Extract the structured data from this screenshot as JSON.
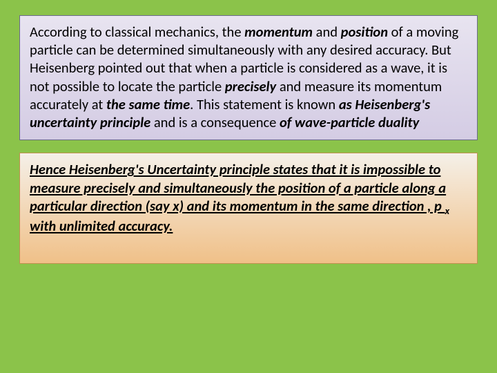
{
  "slide": {
    "background_color": "#8bc34a",
    "box1": {
      "gradient_top": "#e8e4f0",
      "gradient_bottom": "#d4cce4",
      "border_color": "#6a6a8a",
      "segments": {
        "s1": "According to classical mechanics, the ",
        "s2": "momentum",
        "s3": " and ",
        "s4": "position",
        "s5": " of a moving particle can be determined simultaneously with any desired accuracy. But Heisenberg pointed out that when a particle is considered as a wave, it is not possible to locate the particle ",
        "s6": "precisely",
        "s7": " and measure its momentum accurately at ",
        "s8": "the same time",
        "s9": ".  This statement is known ",
        "s10": "as Heisenberg's uncertainty principle",
        "s11": " and is a consequence ",
        "s12": "of wave-particle duality"
      }
    },
    "box2": {
      "gradient_top": "#f5f0e8",
      "gradient_bottom": "#f0c088",
      "border_color": "#c09050",
      "segments": {
        "t1": "Hence  Heisenberg's Uncertainty principle states that it is impossible to measure precisely and simultaneously the position of a particle along a particular direction (say x) and its momentum in the  same  direction , p ",
        "t2": "x",
        "t3": " with unlimited accuracy."
      }
    },
    "typography": {
      "font_family": "Calibri, Arial, sans-serif",
      "font_size_pt": 15,
      "line_height": 1.28,
      "text_color": "#000000"
    }
  }
}
